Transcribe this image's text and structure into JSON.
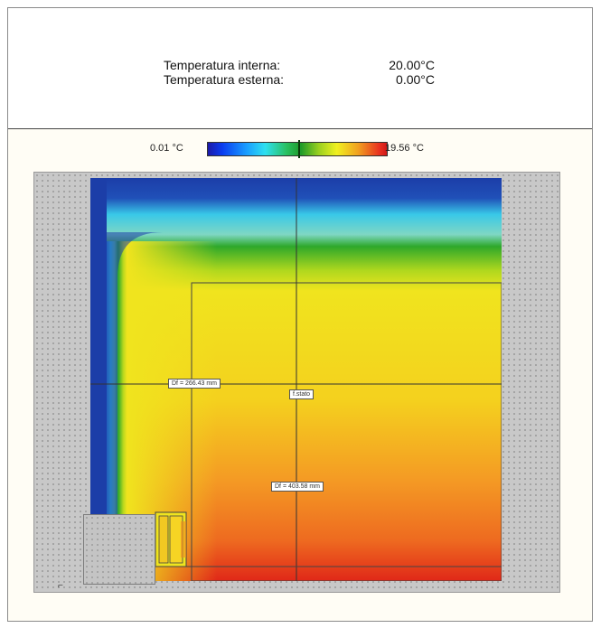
{
  "header": {
    "internal_label": "Temperatura interna:",
    "internal_value": "20.00°C",
    "external_label": "Temperatura esterna:",
    "external_value": "0.00°C"
  },
  "legend": {
    "min_label": "0.01 °C",
    "max_label": "19.56 °C"
  },
  "plot": {
    "label_top": "Df = 266.43 mm",
    "label_center": "f.stato",
    "label_bottom": "Df = 403.58 mm",
    "corner_mark": "⌐"
  },
  "colors": {
    "cold": "#1c3ea8",
    "cool": "#38c8e8",
    "mid": "#2ea82a",
    "warm": "#f2e41e",
    "hot": "#e02818"
  }
}
